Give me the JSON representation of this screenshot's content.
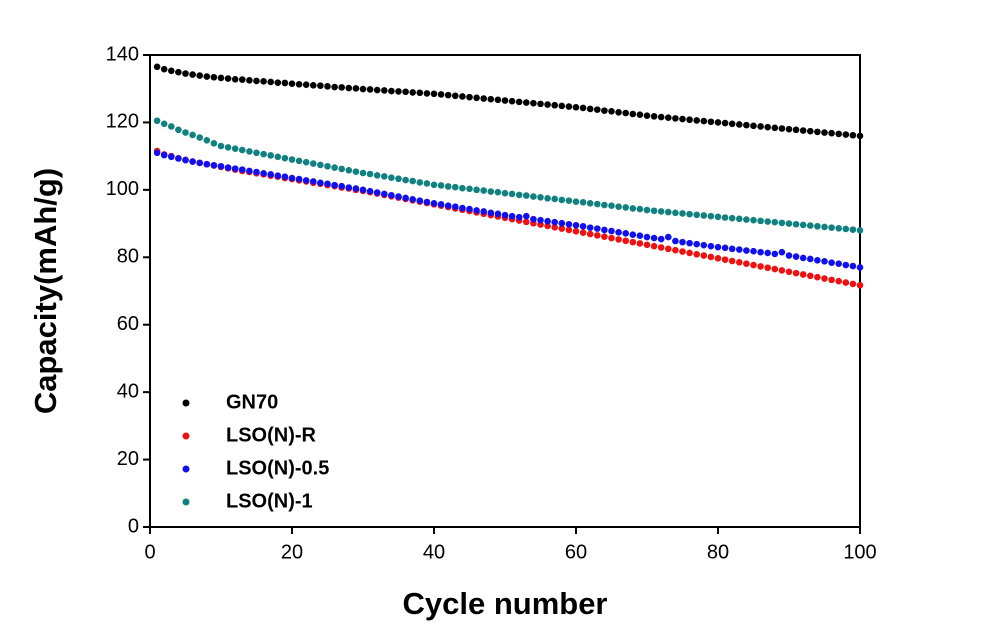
{
  "chart_data": {
    "type": "scatter",
    "xlabel": "Cycle number",
    "ylabel": "Capacity(mAh/g)",
    "xlim": [
      0,
      100
    ],
    "ylim": [
      0,
      140
    ],
    "xticks": [
      0,
      20,
      40,
      60,
      80,
      100
    ],
    "yticks": [
      0,
      20,
      40,
      60,
      80,
      100,
      120,
      140
    ],
    "legend": "lower left",
    "x": [
      1,
      2,
      3,
      4,
      5,
      6,
      7,
      8,
      9,
      10,
      11,
      12,
      13,
      14,
      15,
      16,
      17,
      18,
      19,
      20,
      21,
      22,
      23,
      24,
      25,
      26,
      27,
      28,
      29,
      30,
      31,
      32,
      33,
      34,
      35,
      36,
      37,
      38,
      39,
      40,
      41,
      42,
      43,
      44,
      45,
      46,
      47,
      48,
      49,
      50,
      51,
      52,
      53,
      54,
      55,
      56,
      57,
      58,
      59,
      60,
      61,
      62,
      63,
      64,
      65,
      66,
      67,
      68,
      69,
      70,
      71,
      72,
      73,
      74,
      75,
      76,
      77,
      78,
      79,
      80,
      81,
      82,
      83,
      84,
      85,
      86,
      87,
      88,
      89,
      90,
      91,
      92,
      93,
      94,
      95,
      96,
      97,
      98,
      99,
      100
    ],
    "series": [
      {
        "name": "GN70",
        "color": "#000000",
        "values": [
          136.5,
          135.8,
          135.3,
          134.9,
          134.5,
          134.2,
          133.9,
          133.6,
          133.4,
          133.2,
          133.0,
          132.8,
          132.7,
          132.5,
          132.3,
          132.2,
          132.0,
          131.8,
          131.7,
          131.5,
          131.3,
          131.2,
          131.0,
          130.9,
          130.7,
          130.5,
          130.4,
          130.2,
          130.1,
          129.9,
          129.8,
          129.6,
          129.5,
          129.3,
          129.2,
          129.1,
          128.9,
          128.8,
          128.6,
          128.5,
          128.3,
          128.1,
          127.9,
          127.7,
          127.5,
          127.3,
          127.1,
          126.9,
          126.7,
          126.5,
          126.3,
          126.1,
          125.9,
          125.7,
          125.5,
          125.3,
          125.1,
          124.9,
          124.7,
          124.5,
          124.3,
          124.0,
          123.8,
          123.5,
          123.3,
          123.0,
          122.8,
          122.5,
          122.3,
          122.0,
          121.8,
          121.6,
          121.4,
          121.2,
          121.0,
          120.8,
          120.6,
          120.4,
          120.2,
          120.0,
          119.8,
          119.6,
          119.4,
          119.2,
          119.0,
          118.8,
          118.6,
          118.4,
          118.2,
          118.0,
          117.8,
          117.6,
          117.4,
          117.2,
          117.0,
          116.8,
          116.6,
          116.4,
          116.2,
          116.0
        ]
      },
      {
        "name": "LSO(N)-R",
        "color": "#ee1111",
        "values": [
          111.5,
          110.5,
          110.0,
          109.4,
          108.9,
          108.4,
          108.0,
          107.6,
          107.2,
          106.8,
          106.4,
          106.0,
          105.6,
          105.3,
          104.9,
          104.6,
          104.2,
          103.9,
          103.5,
          103.2,
          102.8,
          102.5,
          102.1,
          101.8,
          101.4,
          101.1,
          100.7,
          100.4,
          100.0,
          99.7,
          99.3,
          98.9,
          98.5,
          98.1,
          97.7,
          97.3,
          96.9,
          96.5,
          96.1,
          95.7,
          95.3,
          94.9,
          94.5,
          94.1,
          93.7,
          93.3,
          92.9,
          92.5,
          92.1,
          91.7,
          91.3,
          90.9,
          90.5,
          90.1,
          89.7,
          89.3,
          88.9,
          88.5,
          88.1,
          87.7,
          87.3,
          86.9,
          86.5,
          86.1,
          85.7,
          85.3,
          84.9,
          84.5,
          84.1,
          83.7,
          83.3,
          82.9,
          82.5,
          82.1,
          81.7,
          81.3,
          80.9,
          80.5,
          80.1,
          79.7,
          79.3,
          78.9,
          78.5,
          78.1,
          77.7,
          77.3,
          76.9,
          76.5,
          76.1,
          75.7,
          75.3,
          74.9,
          74.5,
          74.1,
          73.7,
          73.3,
          72.9,
          72.5,
          72.1,
          71.7
        ]
      },
      {
        "name": "LSO(N)-0.5",
        "color": "#1010ee",
        "values": [
          111.0,
          110.3,
          109.8,
          109.3,
          108.8,
          108.4,
          108.0,
          107.6,
          107.3,
          107.0,
          106.6,
          106.3,
          106.0,
          105.6,
          105.3,
          104.9,
          104.6,
          104.2,
          103.9,
          103.5,
          103.2,
          102.8,
          102.5,
          102.1,
          101.8,
          101.4,
          101.1,
          100.7,
          100.4,
          100.0,
          99.6,
          99.2,
          98.8,
          98.4,
          98.0,
          97.6,
          97.2,
          96.8,
          96.4,
          96.0,
          95.7,
          95.3,
          95.0,
          94.6,
          94.3,
          93.9,
          93.6,
          93.2,
          92.9,
          92.5,
          92.2,
          91.9,
          92.2,
          91.3,
          91.0,
          90.7,
          90.4,
          90.1,
          89.8,
          89.5,
          89.2,
          88.8,
          88.5,
          88.1,
          87.8,
          87.4,
          87.1,
          86.7,
          86.4,
          86.0,
          85.7,
          85.4,
          86.0,
          84.8,
          84.5,
          84.2,
          83.9,
          83.6,
          83.3,
          83.0,
          82.8,
          82.5,
          82.3,
          82.0,
          81.8,
          81.5,
          81.3,
          81.0,
          81.5,
          80.5,
          80.2,
          79.8,
          79.5,
          79.1,
          78.8,
          78.4,
          78.1,
          77.7,
          77.4,
          77.0
        ]
      },
      {
        "name": "LSO(N)-1",
        "color": "#118080",
        "values": [
          120.5,
          119.6,
          118.8,
          117.8,
          117.0,
          116.3,
          115.5,
          114.7,
          113.8,
          113.0,
          112.6,
          112.2,
          111.8,
          111.4,
          111.0,
          110.6,
          110.2,
          109.8,
          109.4,
          109.0,
          108.6,
          108.2,
          107.8,
          107.4,
          107.0,
          106.6,
          106.2,
          105.8,
          105.4,
          105.0,
          104.7,
          104.3,
          104.0,
          103.6,
          103.3,
          102.9,
          102.6,
          102.2,
          101.9,
          101.5,
          101.3,
          101.0,
          100.8,
          100.5,
          100.3,
          100.0,
          99.8,
          99.5,
          99.3,
          99.0,
          98.8,
          98.5,
          98.3,
          98.0,
          97.8,
          97.5,
          97.3,
          97.0,
          96.8,
          96.5,
          96.3,
          96.0,
          95.8,
          95.5,
          95.3,
          95.0,
          94.8,
          94.5,
          94.3,
          94.0,
          93.8,
          93.6,
          93.4,
          93.2,
          93.0,
          92.8,
          92.6,
          92.4,
          92.2,
          92.0,
          91.8,
          91.6,
          91.4,
          91.2,
          91.0,
          90.8,
          90.6,
          90.4,
          90.2,
          90.0,
          89.8,
          89.6,
          89.4,
          89.2,
          89.0,
          88.8,
          88.6,
          88.4,
          88.2,
          88.0
        ]
      }
    ]
  }
}
